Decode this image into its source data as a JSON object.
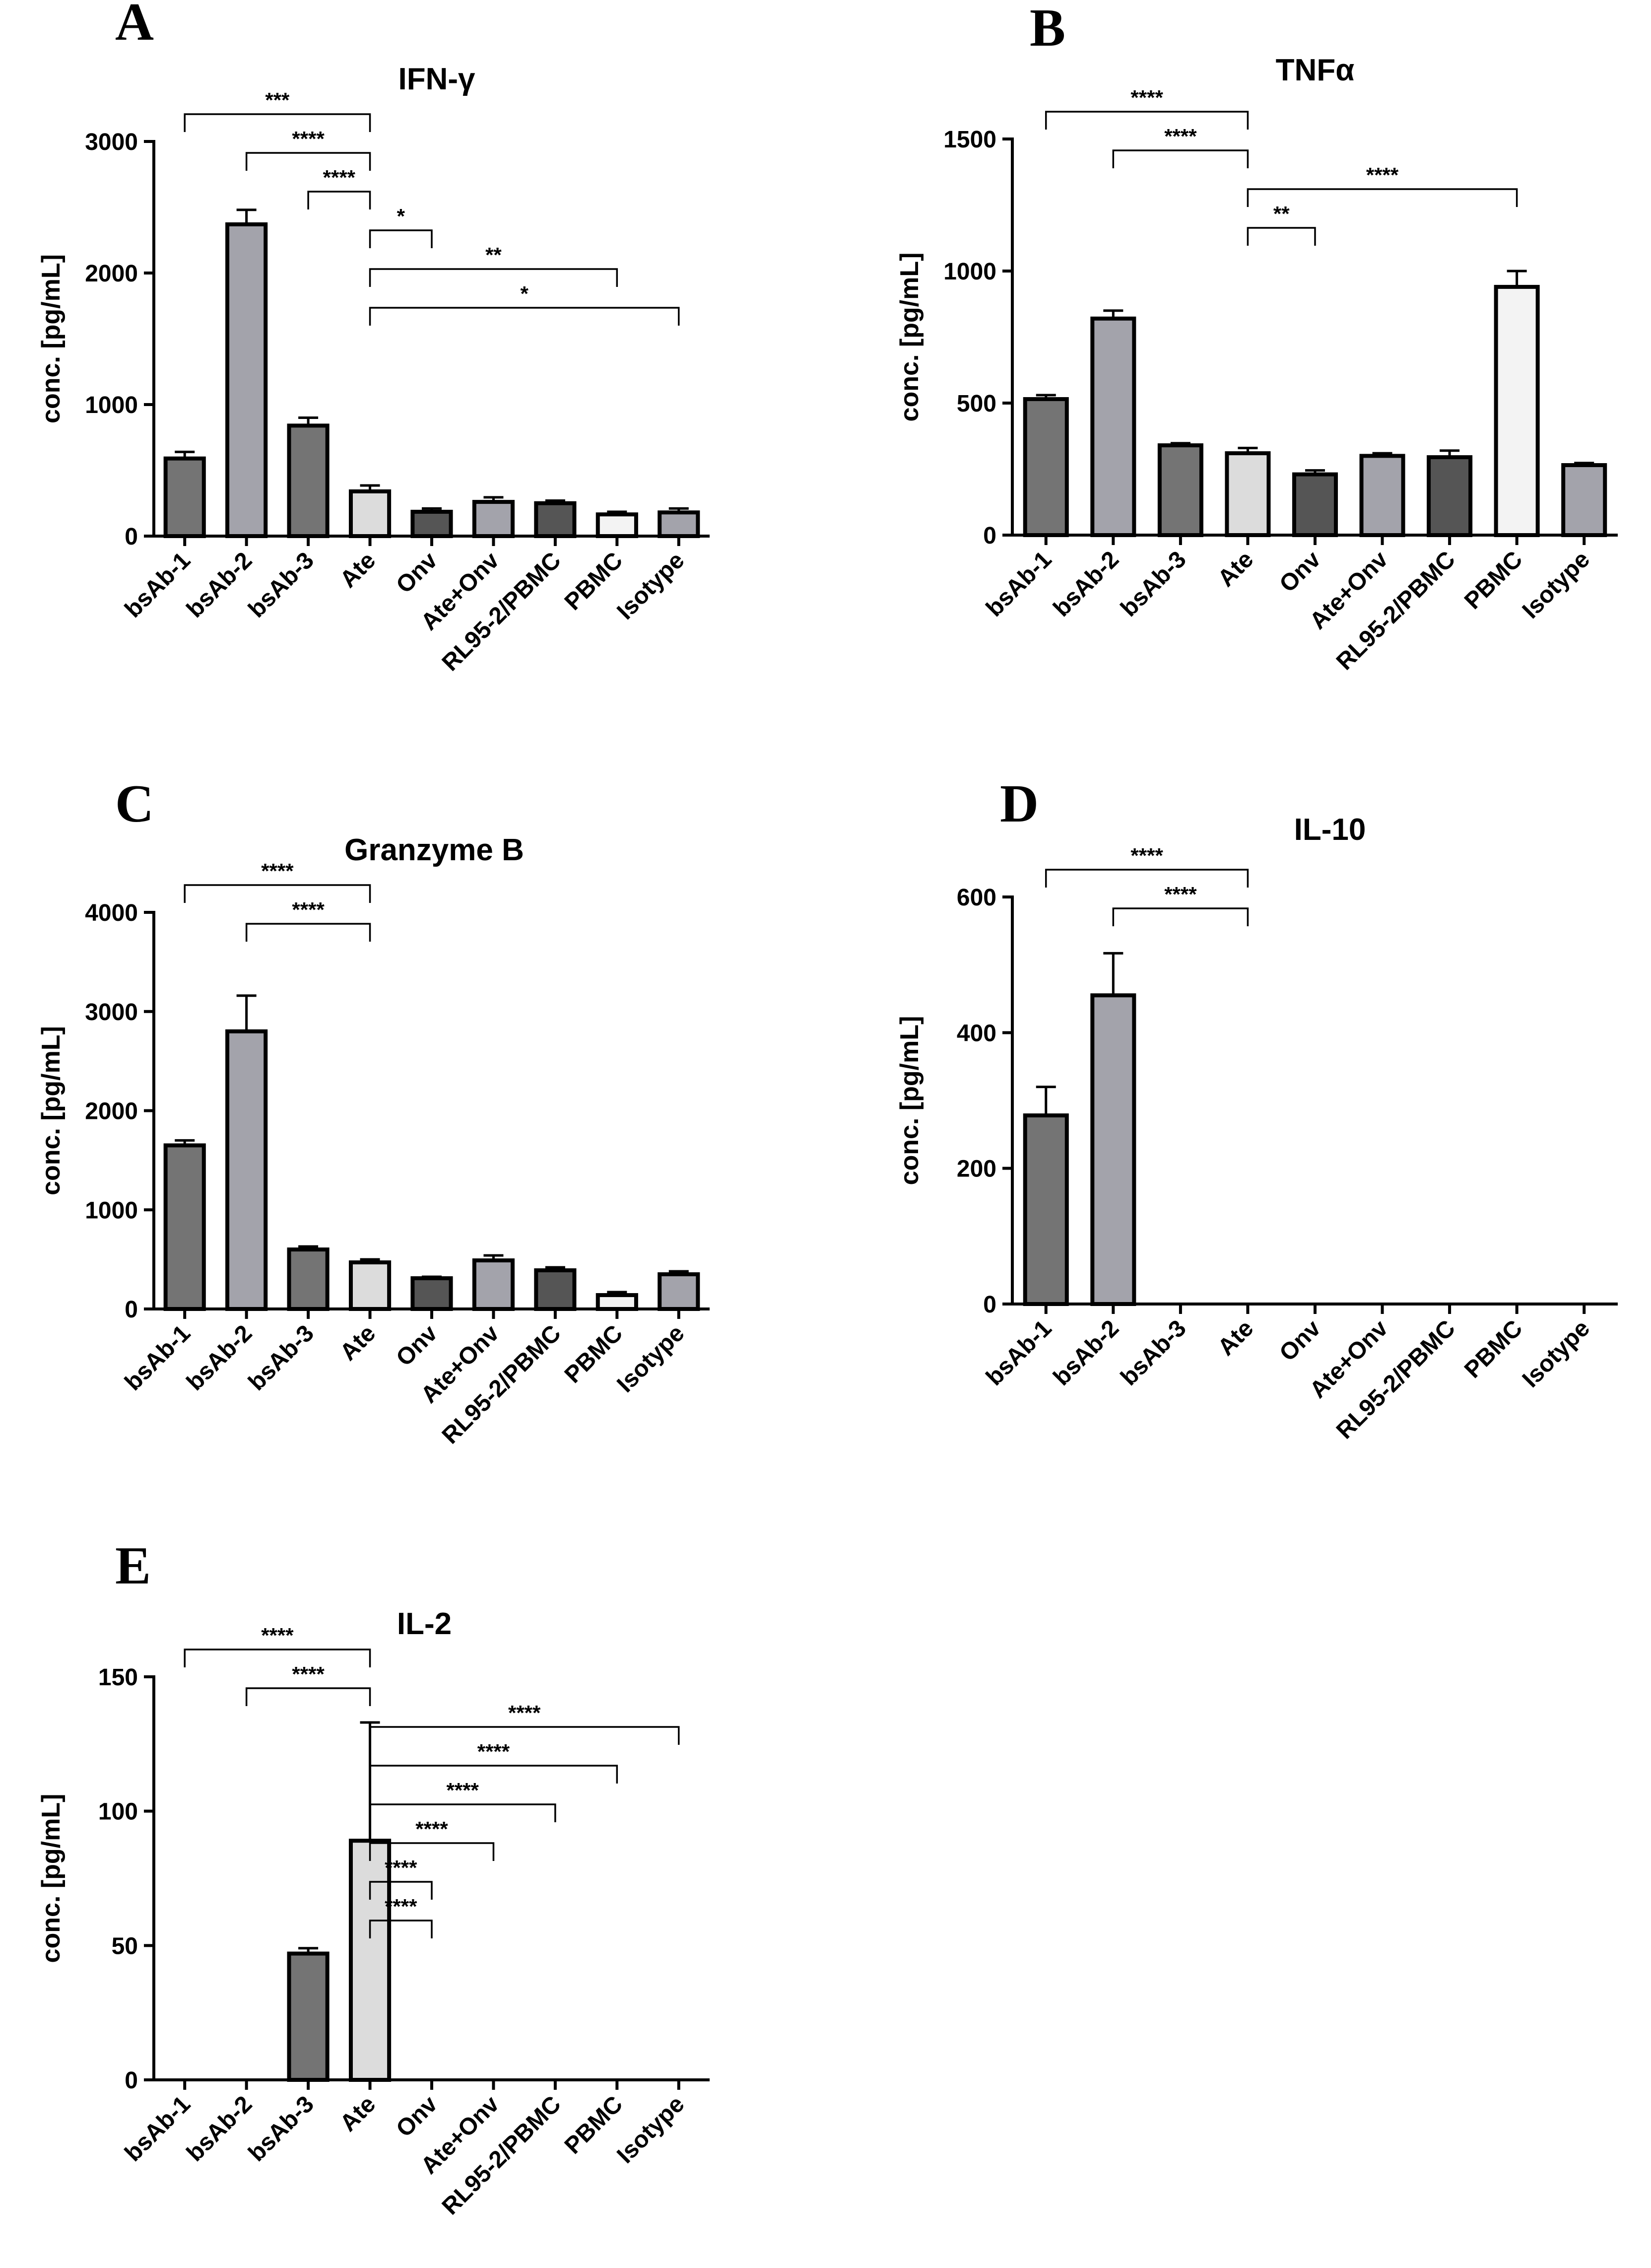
{
  "figure": {
    "categories": [
      "bsAb-1",
      "bsAb-2",
      "bsAb-3",
      "Ate",
      "Onv",
      "Ate+Onv",
      "RL95-2/PBMC",
      "PBMC",
      "Isotype"
    ],
    "bar_colors": [
      "#747474",
      "#a3a3ab",
      "#747474",
      "#dcdcdc",
      "#555555",
      "#a3a3ab",
      "#555555",
      "#f3f3f3",
      "#a3a3ab"
    ]
  },
  "chart_data": [
    {
      "panel": "A",
      "type": "bar",
      "title": "IFN-γ",
      "ylabel": "conc. [pg/mL]",
      "ylim": [
        0,
        3000
      ],
      "yticks": [
        0,
        1000,
        2000,
        3000
      ],
      "categories": [
        "bsAb-1",
        "bsAb-2",
        "bsAb-3",
        "Ate",
        "Onv",
        "Ate+Onv",
        "RL95-2/PBMC",
        "PBMC",
        "Isotype"
      ],
      "values": [
        590,
        2370,
        840,
        340,
        185,
        260,
        250,
        165,
        180
      ],
      "errors": [
        50,
        110,
        60,
        45,
        25,
        35,
        20,
        20,
        30
      ],
      "significance": [
        {
          "from": 0,
          "to": 3,
          "label": "***"
        },
        {
          "from": 1,
          "to": 3,
          "label": "****"
        },
        {
          "from": 2,
          "to": 3,
          "label": "****"
        },
        {
          "from": 3,
          "to": 4,
          "label": "*"
        },
        {
          "from": 3,
          "to": 7,
          "label": "**"
        },
        {
          "from": 3,
          "to": 8,
          "label": "*"
        }
      ]
    },
    {
      "panel": "B",
      "type": "bar",
      "title": "TNFα",
      "ylabel": "conc. [pg/mL]",
      "ylim": [
        0,
        1500
      ],
      "yticks": [
        0,
        500,
        1000,
        1500
      ],
      "categories": [
        "bsAb-1",
        "bsAb-2",
        "bsAb-3",
        "Ate",
        "Onv",
        "Ate+Onv",
        "RL95-2/PBMC",
        "PBMC",
        "Isotype"
      ],
      "values": [
        515,
        820,
        340,
        310,
        230,
        300,
        295,
        940,
        265
      ],
      "errors": [
        15,
        30,
        8,
        20,
        15,
        10,
        25,
        60,
        8
      ],
      "significance": [
        {
          "from": 0,
          "to": 3,
          "label": "****"
        },
        {
          "from": 1,
          "to": 3,
          "label": "****"
        },
        {
          "from": 3,
          "to": 7,
          "label": "****"
        },
        {
          "from": 3,
          "to": 4,
          "label": "**"
        }
      ]
    },
    {
      "panel": "C",
      "type": "bar",
      "title": "Granzyme B",
      "ylabel": "conc. [pg/mL]",
      "ylim": [
        0,
        4000
      ],
      "yticks": [
        0,
        1000,
        2000,
        3000,
        4000
      ],
      "categories": [
        "bsAb-1",
        "bsAb-2",
        "bsAb-3",
        "Ate",
        "Onv",
        "Ate+Onv",
        "RL95-2/PBMC",
        "PBMC",
        "Isotype"
      ],
      "values": [
        1650,
        2800,
        600,
        470,
        310,
        490,
        390,
        140,
        350
      ],
      "errors": [
        50,
        360,
        30,
        30,
        15,
        50,
        30,
        30,
        30
      ],
      "significance": [
        {
          "from": 0,
          "to": 3,
          "label": "****"
        },
        {
          "from": 1,
          "to": 3,
          "label": "****"
        }
      ]
    },
    {
      "panel": "D",
      "type": "bar",
      "title": "IL-10",
      "ylabel": "conc. [pg/mL]",
      "ylim": [
        0,
        600
      ],
      "yticks": [
        0,
        200,
        400,
        600
      ],
      "categories": [
        "bsAb-1",
        "bsAb-2",
        "bsAb-3",
        "Ate",
        "Onv",
        "Ate+Onv",
        "RL95-2/PBMC",
        "PBMC",
        "Isotype"
      ],
      "values": [
        278,
        455,
        0,
        0,
        0,
        0,
        0,
        0,
        0
      ],
      "errors": [
        42,
        62,
        0,
        0,
        0,
        0,
        0,
        0,
        0
      ],
      "significance": [
        {
          "from": 0,
          "to": 3,
          "label": "****"
        },
        {
          "from": 1,
          "to": 3,
          "label": "****"
        }
      ]
    },
    {
      "panel": "E",
      "type": "bar",
      "title": "IL-2",
      "ylabel": "conc. [pg/mL]",
      "ylim": [
        0,
        150
      ],
      "yticks": [
        0,
        50,
        100,
        150
      ],
      "categories": [
        "bsAb-1",
        "bsAb-2",
        "bsAb-3",
        "Ate",
        "Onv",
        "Ate+Onv",
        "RL95-2/PBMC",
        "PBMC",
        "Isotype"
      ],
      "values": [
        0,
        0,
        47,
        89,
        0,
        0,
        0,
        0,
        0
      ],
      "errors": [
        0,
        0,
        2,
        44,
        0,
        0,
        0,
        0,
        0
      ],
      "significance": [
        {
          "from": 0,
          "to": 3,
          "label": "****"
        },
        {
          "from": 1,
          "to": 3,
          "label": "****"
        },
        {
          "from": 3,
          "to": 8,
          "label": "****"
        },
        {
          "from": 3,
          "to": 7,
          "label": "****"
        },
        {
          "from": 3,
          "to": 6,
          "label": "****"
        },
        {
          "from": 3,
          "to": 5,
          "label": "****"
        },
        {
          "from": 3,
          "to": 4,
          "label": "****"
        },
        {
          "from": 3,
          "to": 4,
          "label": "****"
        }
      ]
    }
  ]
}
